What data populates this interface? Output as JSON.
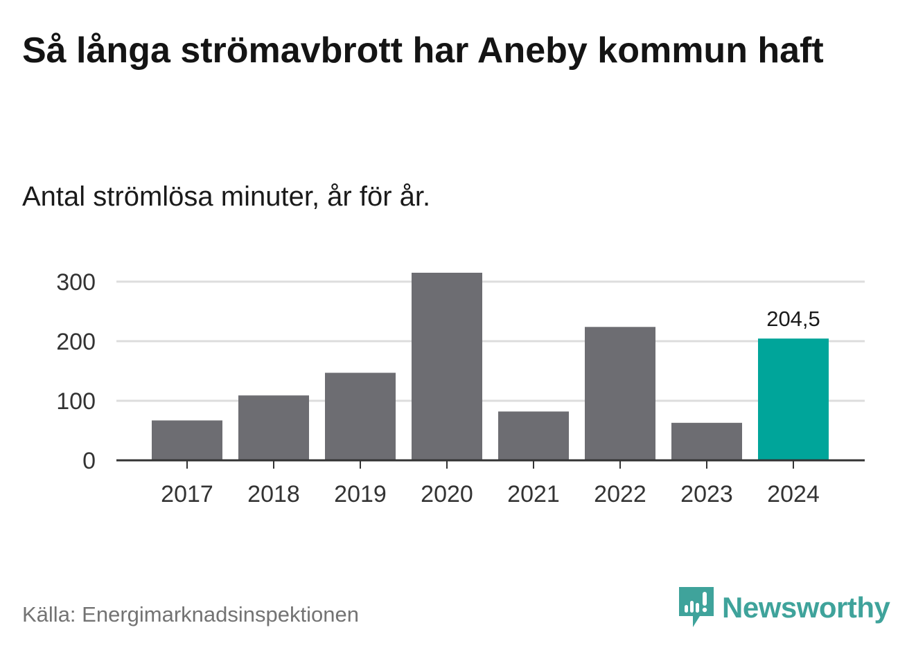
{
  "title": "Så långa strömavbrott har Aneby kommun haft",
  "subtitle": "Antal strömlösa minuter, år för år.",
  "source": "Källa: Energimarknadsinspektionen",
  "brand": {
    "name": "Newsworthy",
    "icon": "newsworthy-logo-icon",
    "color": "#3fa39b"
  },
  "colors": {
    "bar": "#6d6d72",
    "highlight": "#00a59a",
    "grid": "#dddddd",
    "axis": "#333333"
  },
  "chart_data": {
    "type": "bar",
    "title": "Så långa strömavbrott har Aneby kommun haft",
    "subtitle": "Antal strömlösa minuter, år för år.",
    "categories": [
      "2017",
      "2018",
      "2019",
      "2020",
      "2021",
      "2022",
      "2023",
      "2024"
    ],
    "values": [
      67,
      109,
      147,
      315,
      82,
      224,
      63,
      204.5
    ],
    "highlight_index": 7,
    "data_labels": {
      "7": "204,5"
    },
    "ylim": [
      0,
      315
    ],
    "yticks": [
      0,
      100,
      200,
      300
    ],
    "xlabel": "",
    "ylabel": "",
    "grid": true,
    "legend": "none"
  }
}
